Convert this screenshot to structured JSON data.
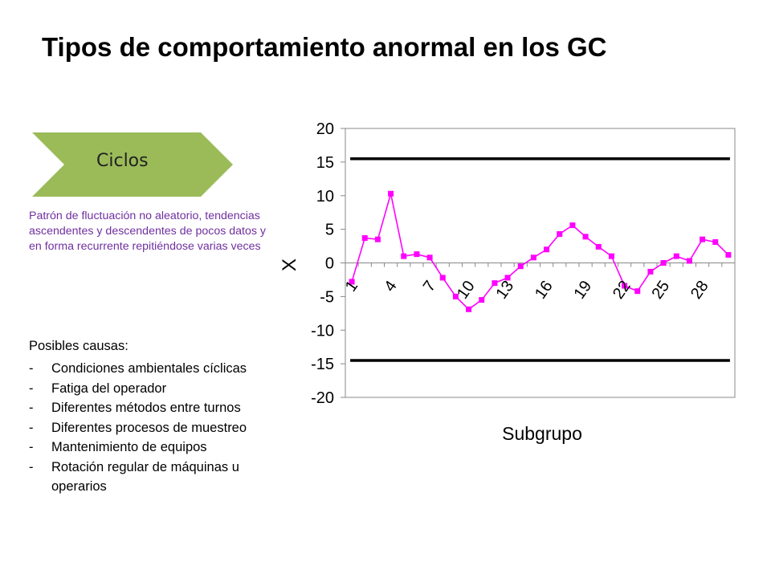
{
  "title": "Tipos de comportamiento anormal en los GC",
  "badge": {
    "label": "Ciclos",
    "color": "#9bbb59"
  },
  "description": "Patrón de fluctuación no aleatorio, tendencias ascendentes y descendentes de pocos datos y en forma recurrente repitiéndose varias veces",
  "description_color": "#7030a0",
  "causes": {
    "title": "Posibles causas:",
    "items": [
      "Condiciones ambientales cíclicas",
      "Fatiga del operador",
      "Diferentes métodos entre turnos",
      "Diferentes procesos de muestreo",
      "Mantenimiento de equipos",
      "Rotación regular de máquinas u operarios"
    ],
    "bullet": "-"
  },
  "chart_data": {
    "type": "line",
    "xlabel": "Subgrupo",
    "ylabel": "X",
    "ylim": [
      -20,
      20
    ],
    "yticks": [
      20,
      15,
      10,
      5,
      0,
      -5,
      -10,
      -15,
      -20
    ],
    "x": [
      1,
      2,
      3,
      4,
      5,
      6,
      7,
      8,
      9,
      10,
      11,
      12,
      13,
      14,
      15,
      16,
      17,
      18,
      19,
      20,
      21,
      22,
      23,
      24,
      25,
      26,
      27,
      28,
      29,
      30
    ],
    "xtick_labels": [
      "1",
      "4",
      "7",
      "10",
      "13",
      "16",
      "19",
      "22",
      "25",
      "28"
    ],
    "xtick_values": [
      1,
      4,
      7,
      10,
      13,
      16,
      19,
      22,
      25,
      28
    ],
    "series": [
      {
        "values": [
          -2.8,
          3.7,
          3.5,
          10.3,
          1.0,
          1.3,
          0.8,
          -2.2,
          -5.0,
          -6.9,
          -5.5,
          -3.0,
          -2.2,
          -0.5,
          0.8,
          2.0,
          4.3,
          5.6,
          3.9,
          2.4,
          1.0,
          -3.4,
          -4.2,
          -1.3,
          0.0,
          1.0,
          0.3,
          3.5,
          3.1,
          1.2
        ],
        "color": "#ff00ff"
      }
    ],
    "control_limits": [
      15.5,
      -14.5
    ],
    "limit_color": "#000000",
    "grid": false
  }
}
